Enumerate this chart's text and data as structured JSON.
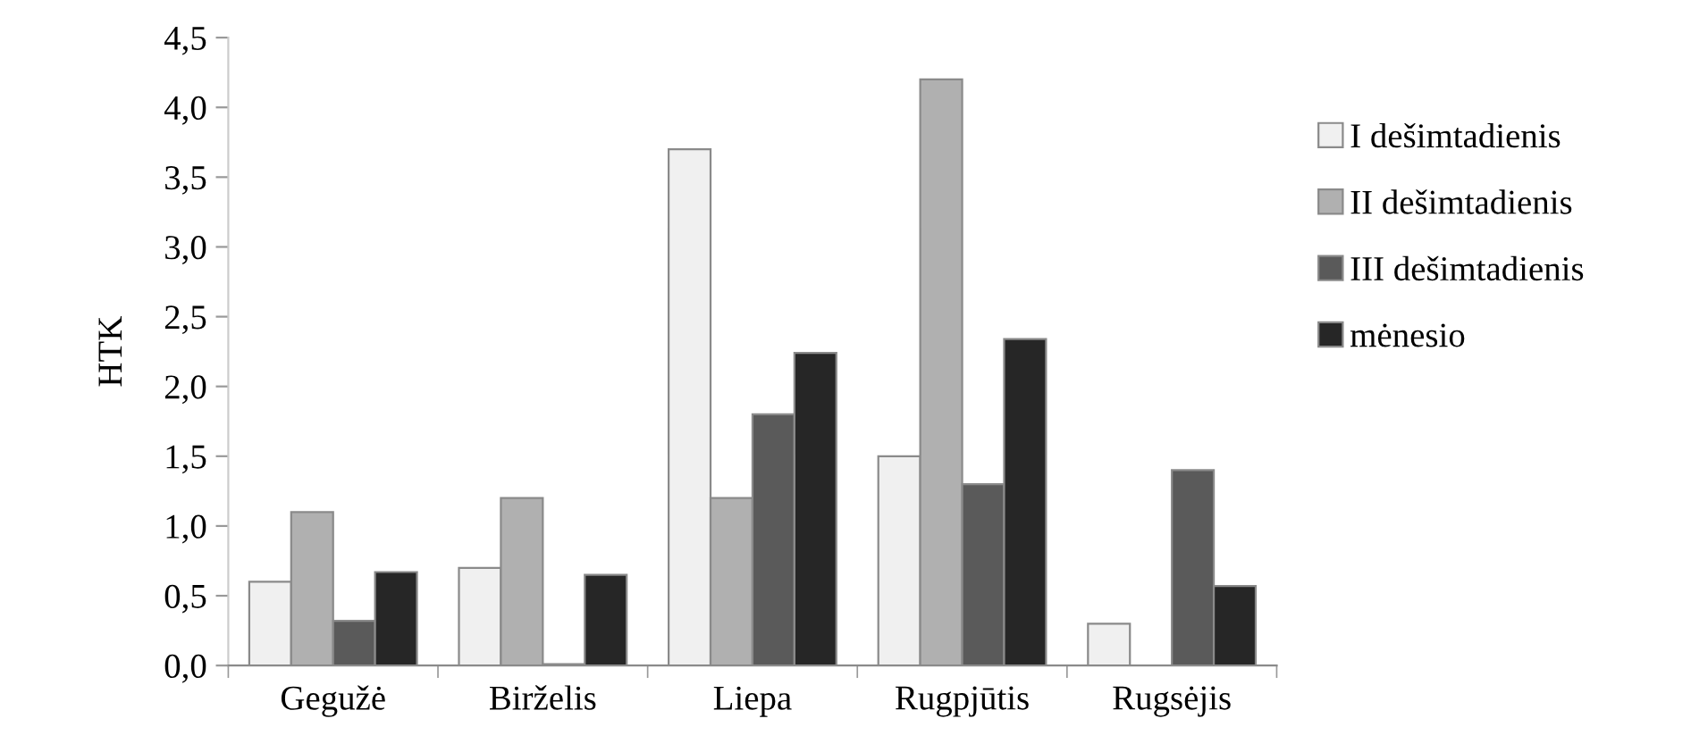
{
  "chart_data": {
    "type": "bar",
    "ylabel": "HTK",
    "categories": [
      "Gegužė",
      "Birželis",
      "Liepa",
      "Rugpjūtis",
      "Rugsėjis"
    ],
    "series": [
      {
        "name": "I dešimtadienis",
        "color": "#f0f0f0",
        "values": [
          0.6,
          0.7,
          3.7,
          1.5,
          0.3
        ]
      },
      {
        "name": "II dešimtadienis",
        "color": "#b0b0b0",
        "values": [
          1.1,
          1.2,
          1.2,
          4.2,
          null
        ]
      },
      {
        "name": "III dešimtadienis",
        "color": "#5a5a5a",
        "values": [
          0.32,
          0.01,
          1.8,
          1.3,
          1.4
        ]
      },
      {
        "name": "mėnesio",
        "color": "#262626",
        "values": [
          0.67,
          0.65,
          2.24,
          2.34,
          0.57
        ]
      }
    ],
    "ylim": [
      0,
      4.5
    ],
    "yticks": [
      {
        "value": 0,
        "label": "0,0"
      },
      {
        "value": 0.5,
        "label": "0,5"
      },
      {
        "value": 1,
        "label": "1,0"
      },
      {
        "value": 1.5,
        "label": "1,5"
      },
      {
        "value": 2,
        "label": "2,0"
      },
      {
        "value": 2.5,
        "label": "2,5"
      },
      {
        "value": 3,
        "label": "3,0"
      },
      {
        "value": 3.5,
        "label": "3,5"
      },
      {
        "value": 4,
        "label": "4,0"
      },
      {
        "value": 4.5,
        "label": "4,5"
      }
    ],
    "grid": false,
    "legend": "right"
  }
}
